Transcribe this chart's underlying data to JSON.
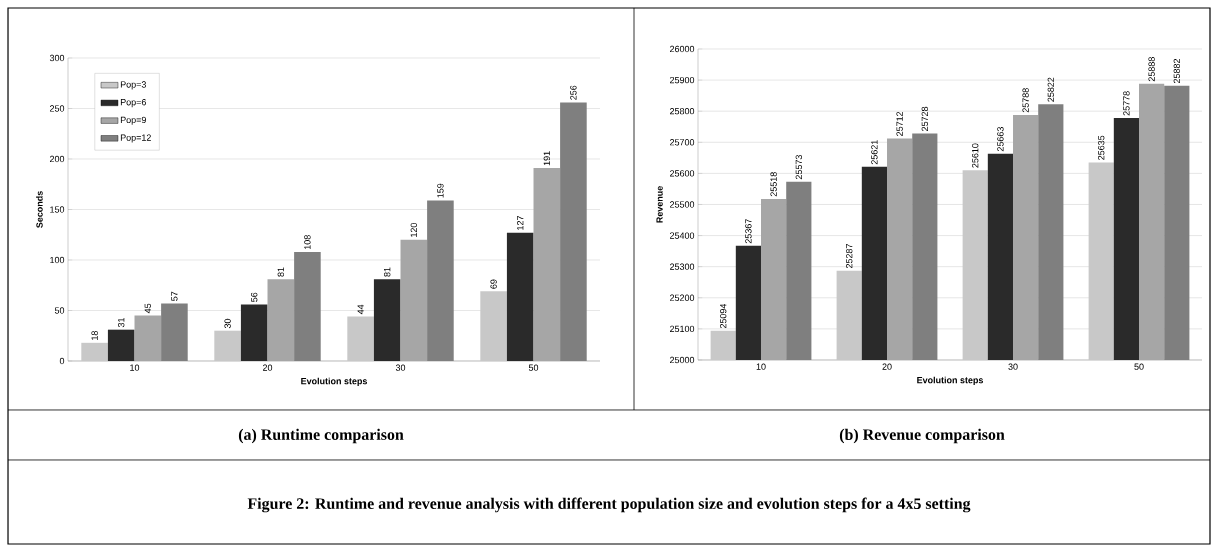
{
  "chart_data": [
    {
      "type": "bar",
      "title": "(a) Runtime comparison",
      "xlabel": "Evolution steps",
      "ylabel": "Seconds",
      "categories": [
        "10",
        "20",
        "30",
        "50"
      ],
      "series": [
        {
          "name": "Pop=3",
          "color": "#c8c8c8",
          "values": [
            18,
            30,
            44,
            69
          ]
        },
        {
          "name": "Pop=6",
          "color": "#2a2a2a",
          "values": [
            31,
            56,
            81,
            127
          ]
        },
        {
          "name": "Pop=9",
          "color": "#a6a6a6",
          "values": [
            45,
            81,
            120,
            191
          ]
        },
        {
          "name": "Pop=12",
          "color": "#7f7f7f",
          "values": [
            57,
            108,
            159,
            256
          ]
        }
      ],
      "ylim": [
        0,
        300
      ],
      "yticks": [
        0,
        50,
        100,
        150,
        200,
        250,
        300
      ],
      "grid": "y",
      "legend": "top left",
      "data_labels": true,
      "annotations": [
        "Figure 2: Runtime and revenue analysis with different population size and evolution steps for a 4x5 setting"
      ]
    },
    {
      "type": "bar",
      "title": "(b) Revenue comparison",
      "xlabel": "Evolution steps",
      "ylabel": "Revenue",
      "categories": [
        "10",
        "20",
        "30",
        "50"
      ],
      "series": [
        {
          "color": "#c8c8c8",
          "values": [
            25094,
            25287,
            25610,
            25635
          ]
        },
        {
          "color": "#2a2a2a",
          "values": [
            25367,
            25621,
            25663,
            25778
          ]
        },
        {
          "color": "#a6a6a6",
          "values": [
            25518,
            25712,
            25788,
            25888
          ]
        },
        {
          "color": "#7f7f7f",
          "values": [
            25573,
            25728,
            25822,
            25882
          ]
        }
      ],
      "ylim": [
        25000,
        26000
      ],
      "yticks": [
        25000,
        25100,
        25200,
        25300,
        25400,
        25500,
        25600,
        25700,
        25800,
        25900,
        26000
      ],
      "grid": "y",
      "data_labels": true
    }
  ]
}
